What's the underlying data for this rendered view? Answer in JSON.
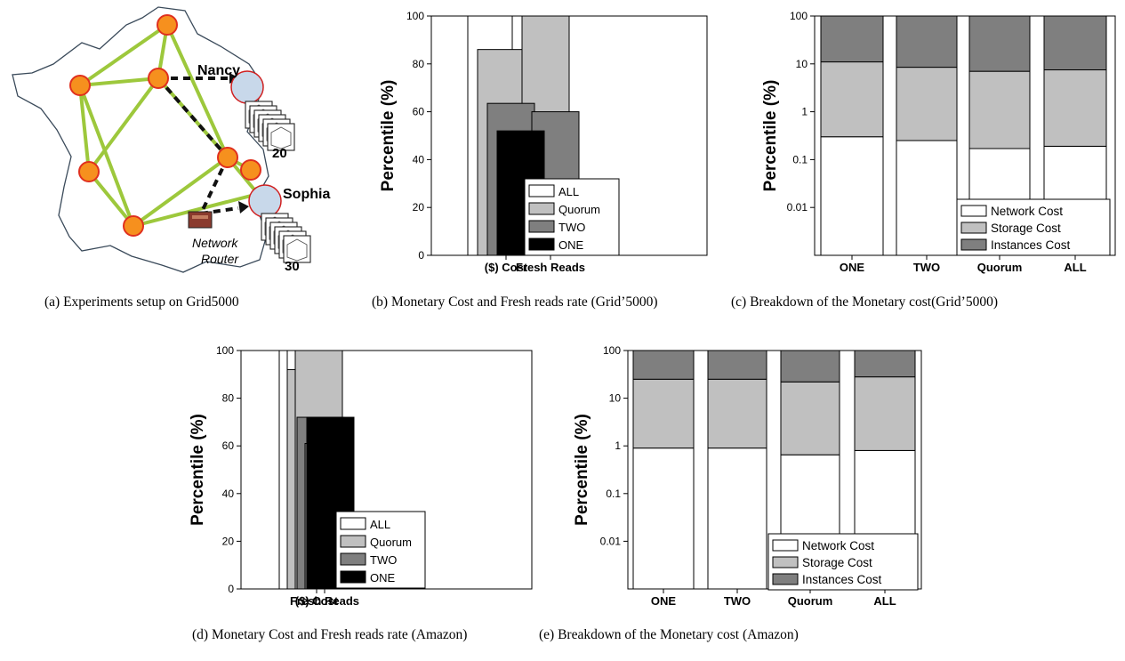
{
  "figure_a": {
    "labels": {
      "nancy": "Nancy",
      "nancy_count": "20",
      "sophia": "Sophia",
      "sophia_count": "30",
      "router_line1": "Network",
      "router_line2": "Router"
    },
    "colors": {
      "map_outline": "#3a4a5a",
      "links": "#9dc83c",
      "nodes_fill": "#f6901e",
      "nodes_stroke": "#e0301e",
      "path": "#111111"
    }
  },
  "captions": {
    "a": "(a) Experiments setup on Grid5000",
    "b": "(b) Monetary Cost and Fresh reads rate (Grid’5000)",
    "c": "(c) Breakdown of the Monetary cost(Grid’5000)",
    "d": "(d) Monetary Cost and Fresh reads rate (Amazon)",
    "e": "(e) Breakdown of the Monetary cost (Amazon)"
  },
  "chart_data": [
    {
      "id": "b",
      "type": "bar",
      "ylabel": "Percentile (%)",
      "ylim": [
        0,
        100
      ],
      "yticks": [
        0,
        20,
        40,
        60,
        80,
        100
      ],
      "categories": [
        "($) Cost",
        "Fresh Reads"
      ],
      "series": [
        {
          "name": "ALL",
          "color": "#ffffff",
          "values": [
            100,
            100
          ]
        },
        {
          "name": "Quorum",
          "color": "#c0c0c0",
          "values": [
            86,
            100
          ]
        },
        {
          "name": "TWO",
          "color": "#7f7f7f",
          "values": [
            63.5,
            60
          ]
        },
        {
          "name": "ONE",
          "color": "#000000",
          "values": [
            52,
            20
          ]
        }
      ],
      "legend": "bottom-right"
    },
    {
      "id": "c",
      "type": "bar",
      "stacked": true,
      "yscale": "log",
      "ylabel": "Percentile (%)",
      "ylim": [
        0.001,
        100
      ],
      "yticks": [
        "0.01",
        "0.1",
        "1",
        "10",
        "100"
      ],
      "categories": [
        "ONE",
        "TWO",
        "Quorum",
        "ALL"
      ],
      "series": [
        {
          "name": "Network Cost",
          "color": "#ffffff",
          "values": [
            0.3,
            0.25,
            0.17,
            0.19
          ]
        },
        {
          "name": "Storage Cost",
          "color": "#c0c0c0",
          "values": [
            11,
            8.5,
            7,
            7.5
          ]
        },
        {
          "name": "Instances Cost",
          "color": "#7f7f7f",
          "values": [
            100,
            100,
            100,
            100
          ]
        }
      ],
      "legend": "bottom-right"
    },
    {
      "id": "d",
      "type": "bar",
      "ylabel": "Percentile (%)",
      "ylim": [
        0,
        100
      ],
      "yticks": [
        0,
        20,
        40,
        60,
        80,
        100
      ],
      "categories": [
        "($) Cost",
        "Fresh Reads"
      ],
      "series": [
        {
          "name": "ALL",
          "color": "#ffffff",
          "values": [
            100,
            100
          ]
        },
        {
          "name": "Quorum",
          "color": "#c0c0c0",
          "values": [
            92,
            100
          ]
        },
        {
          "name": "TWO",
          "color": "#7f7f7f",
          "values": [
            72,
            61
          ]
        },
        {
          "name": "ONE",
          "color": "#000000",
          "values": [
            72,
            21
          ]
        }
      ],
      "legend": "bottom-right"
    },
    {
      "id": "e",
      "type": "bar",
      "stacked": true,
      "yscale": "log",
      "ylabel": "Percentile (%)",
      "ylim": [
        0.001,
        100
      ],
      "yticks": [
        "0.01",
        "0.1",
        "1",
        "10",
        "100"
      ],
      "categories": [
        "ONE",
        "TWO",
        "Quorum",
        "ALL"
      ],
      "series": [
        {
          "name": "Network Cost",
          "color": "#ffffff",
          "values": [
            0.9,
            0.9,
            0.65,
            0.8
          ]
        },
        {
          "name": "Storage Cost",
          "color": "#c0c0c0",
          "values": [
            25,
            25,
            22,
            28
          ]
        },
        {
          "name": "Instances Cost",
          "color": "#7f7f7f",
          "values": [
            100,
            100,
            100,
            100
          ]
        }
      ],
      "legend": "bottom-right"
    }
  ]
}
